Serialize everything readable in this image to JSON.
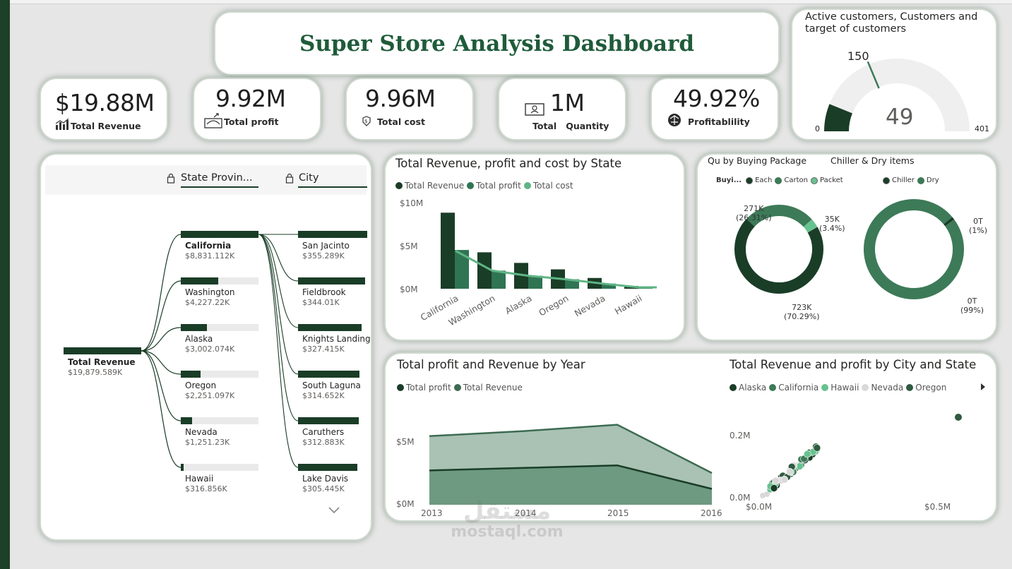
{
  "dashboard": {
    "title": "Super Store Analysis Dashboard"
  },
  "kpis": [
    {
      "value": "$19.88M",
      "label": "Total Revenue",
      "icon": "bar-chart-icon"
    },
    {
      "value": "9.92M",
      "label": "Total profit",
      "icon": "profit-icon"
    },
    {
      "value": "9.96M",
      "label": "Total cost",
      "icon": "cost-icon"
    },
    {
      "value": "1M",
      "label": "Total   Quantity",
      "icon": "id-card-icon"
    },
    {
      "value": "49.92%",
      "label": "Profitablility",
      "icon": "brain-icon"
    }
  ],
  "gauge": {
    "title_line1": "Active customers, Customers and",
    "title_line2": "target of customers",
    "target_label": "150",
    "value_label": "49",
    "min_label": "0",
    "max_label": "401",
    "value": 49,
    "target": 150,
    "min": 0,
    "max": 401
  },
  "tree": {
    "col1": "State Provin...",
    "col2": "City",
    "root": {
      "label": "Total Revenue",
      "value": "$19,879.589K"
    },
    "states": [
      {
        "label": "California",
        "value": "$8,831.112K",
        "frac": 1.0
      },
      {
        "label": "Washington",
        "value": "$4,227.22K",
        "frac": 0.479
      },
      {
        "label": "Alaska",
        "value": "$3,002.074K",
        "frac": 0.34
      },
      {
        "label": "Oregon",
        "value": "$2,251.097K",
        "frac": 0.255
      },
      {
        "label": "Nevada",
        "value": "$1,251.23K",
        "frac": 0.142
      },
      {
        "label": "Hawaii",
        "value": "$316.856K",
        "frac": 0.036
      }
    ],
    "cities": [
      {
        "label": "San Jacinto",
        "value": "$355.289K",
        "frac": 1.0
      },
      {
        "label": "Fieldbrook",
        "value": "$344.01K",
        "frac": 0.968
      },
      {
        "label": "Knights Landing",
        "value": "$327.415K",
        "frac": 0.922
      },
      {
        "label": "South Laguna",
        "value": "$314.652K",
        "frac": 0.886
      },
      {
        "label": "Caruthers",
        "value": "$312.883K",
        "frac": 0.881
      },
      {
        "label": "Lake Davis",
        "value": "$305.445K",
        "frac": 0.86
      }
    ]
  },
  "state_chart": {
    "title": "Total Revenue, profit and cost by State",
    "legend": [
      "Total Revenue",
      "Total profit",
      "Total cost"
    ],
    "y_ticks": [
      "$10M",
      "$5M",
      "$0M"
    ],
    "x_labels": [
      "California",
      "Washington",
      "Alaska",
      "Oregon",
      "Nevada",
      "Hawaii"
    ]
  },
  "donut_chart": {
    "title1": "Qu by Buying Package",
    "title2": "Chiller & Dry items",
    "legend1_title": "Buyi...",
    "legend1": [
      "Each",
      "Carton",
      "Packet"
    ],
    "legend2": [
      "Chiller",
      "Dry"
    ],
    "d1_labels": [
      {
        "v": "271K",
        "p": "(26.31%)"
      },
      {
        "v": "35K",
        "p": "(3.4%)"
      },
      {
        "v": "723K",
        "p": "(70.29%)"
      }
    ],
    "d2_labels": [
      {
        "v": "0T",
        "p": "(1%)"
      },
      {
        "v": "0T",
        "p": "(99%)"
      }
    ]
  },
  "year_chart": {
    "title": "Total profit and Revenue by Year",
    "legend": [
      "Total profit",
      "Total Revenue"
    ],
    "y_ticks": [
      "$5M",
      "$0M"
    ],
    "x_labels": [
      "2013",
      "2014",
      "2015",
      "2016"
    ]
  },
  "scatter_chart": {
    "title": "Total Revenue and profit by City and State",
    "legend": [
      "Alaska",
      "California",
      "Hawaii",
      "Nevada",
      "Oregon"
    ],
    "y_ticks": [
      "0.2M",
      "0.0M"
    ],
    "x_ticks": [
      "$0.0M",
      "$0.5M"
    ]
  },
  "chart_data": [
    {
      "type": "bar",
      "categories": [
        "California",
        "Washington",
        "Alaska",
        "Oregon",
        "Nevada",
        "Hawaii"
      ],
      "series": [
        {
          "name": "Total Revenue",
          "values": [
            8.83,
            4.23,
            3.0,
            2.25,
            1.25,
            0.32
          ]
        },
        {
          "name": "Total profit",
          "values": [
            4.5,
            2.1,
            1.5,
            1.1,
            0.6,
            0.16
          ]
        },
        {
          "name": "Total cost",
          "values": [
            4.4,
            2.1,
            1.5,
            1.1,
            0.6,
            0.16
          ]
        }
      ],
      "ylim": [
        0,
        10
      ],
      "colors": [
        "#1a3d27",
        "#2f7453",
        "#5fb585"
      ]
    },
    {
      "type": "pie",
      "categories": [
        "Each",
        "Carton",
        "Packet"
      ],
      "values": [
        723,
        271,
        35
      ],
      "colors": [
        "#1a3d27",
        "#3d7a58",
        "#66c28e"
      ]
    },
    {
      "type": "pie",
      "categories": [
        "Chiller",
        "Dry"
      ],
      "values": [
        1,
        99
      ],
      "colors": [
        "#1a3d27",
        "#3d7a58"
      ]
    },
    {
      "type": "area",
      "x": [
        "2013",
        "2014",
        "2015",
        "2016"
      ],
      "series": [
        {
          "name": "Total profit",
          "values": [
            2.7,
            2.9,
            3.1,
            1.25
          ]
        },
        {
          "name": "Total Revenue",
          "values": [
            5.4,
            5.8,
            6.3,
            2.5
          ]
        }
      ],
      "ylim": [
        0,
        8
      ],
      "colors": [
        "#1a3d27",
        "#3d6b52"
      ]
    },
    {
      "type": "scatter",
      "series": [
        {
          "name": "Alaska",
          "color": "#1a3d27"
        },
        {
          "name": "California",
          "color": "#3d7a58"
        },
        {
          "name": "Hawaii",
          "color": "#66c28e"
        },
        {
          "name": "Nevada",
          "color": "#d9d9d9"
        },
        {
          "name": "Oregon",
          "color": "#2f5a40"
        }
      ],
      "xlim": [
        0,
        0.65
      ],
      "ylim": [
        0,
        0.3
      ]
    }
  ],
  "watermark": {
    "arabic": "مستقل",
    "latin": "mostaql.com"
  }
}
